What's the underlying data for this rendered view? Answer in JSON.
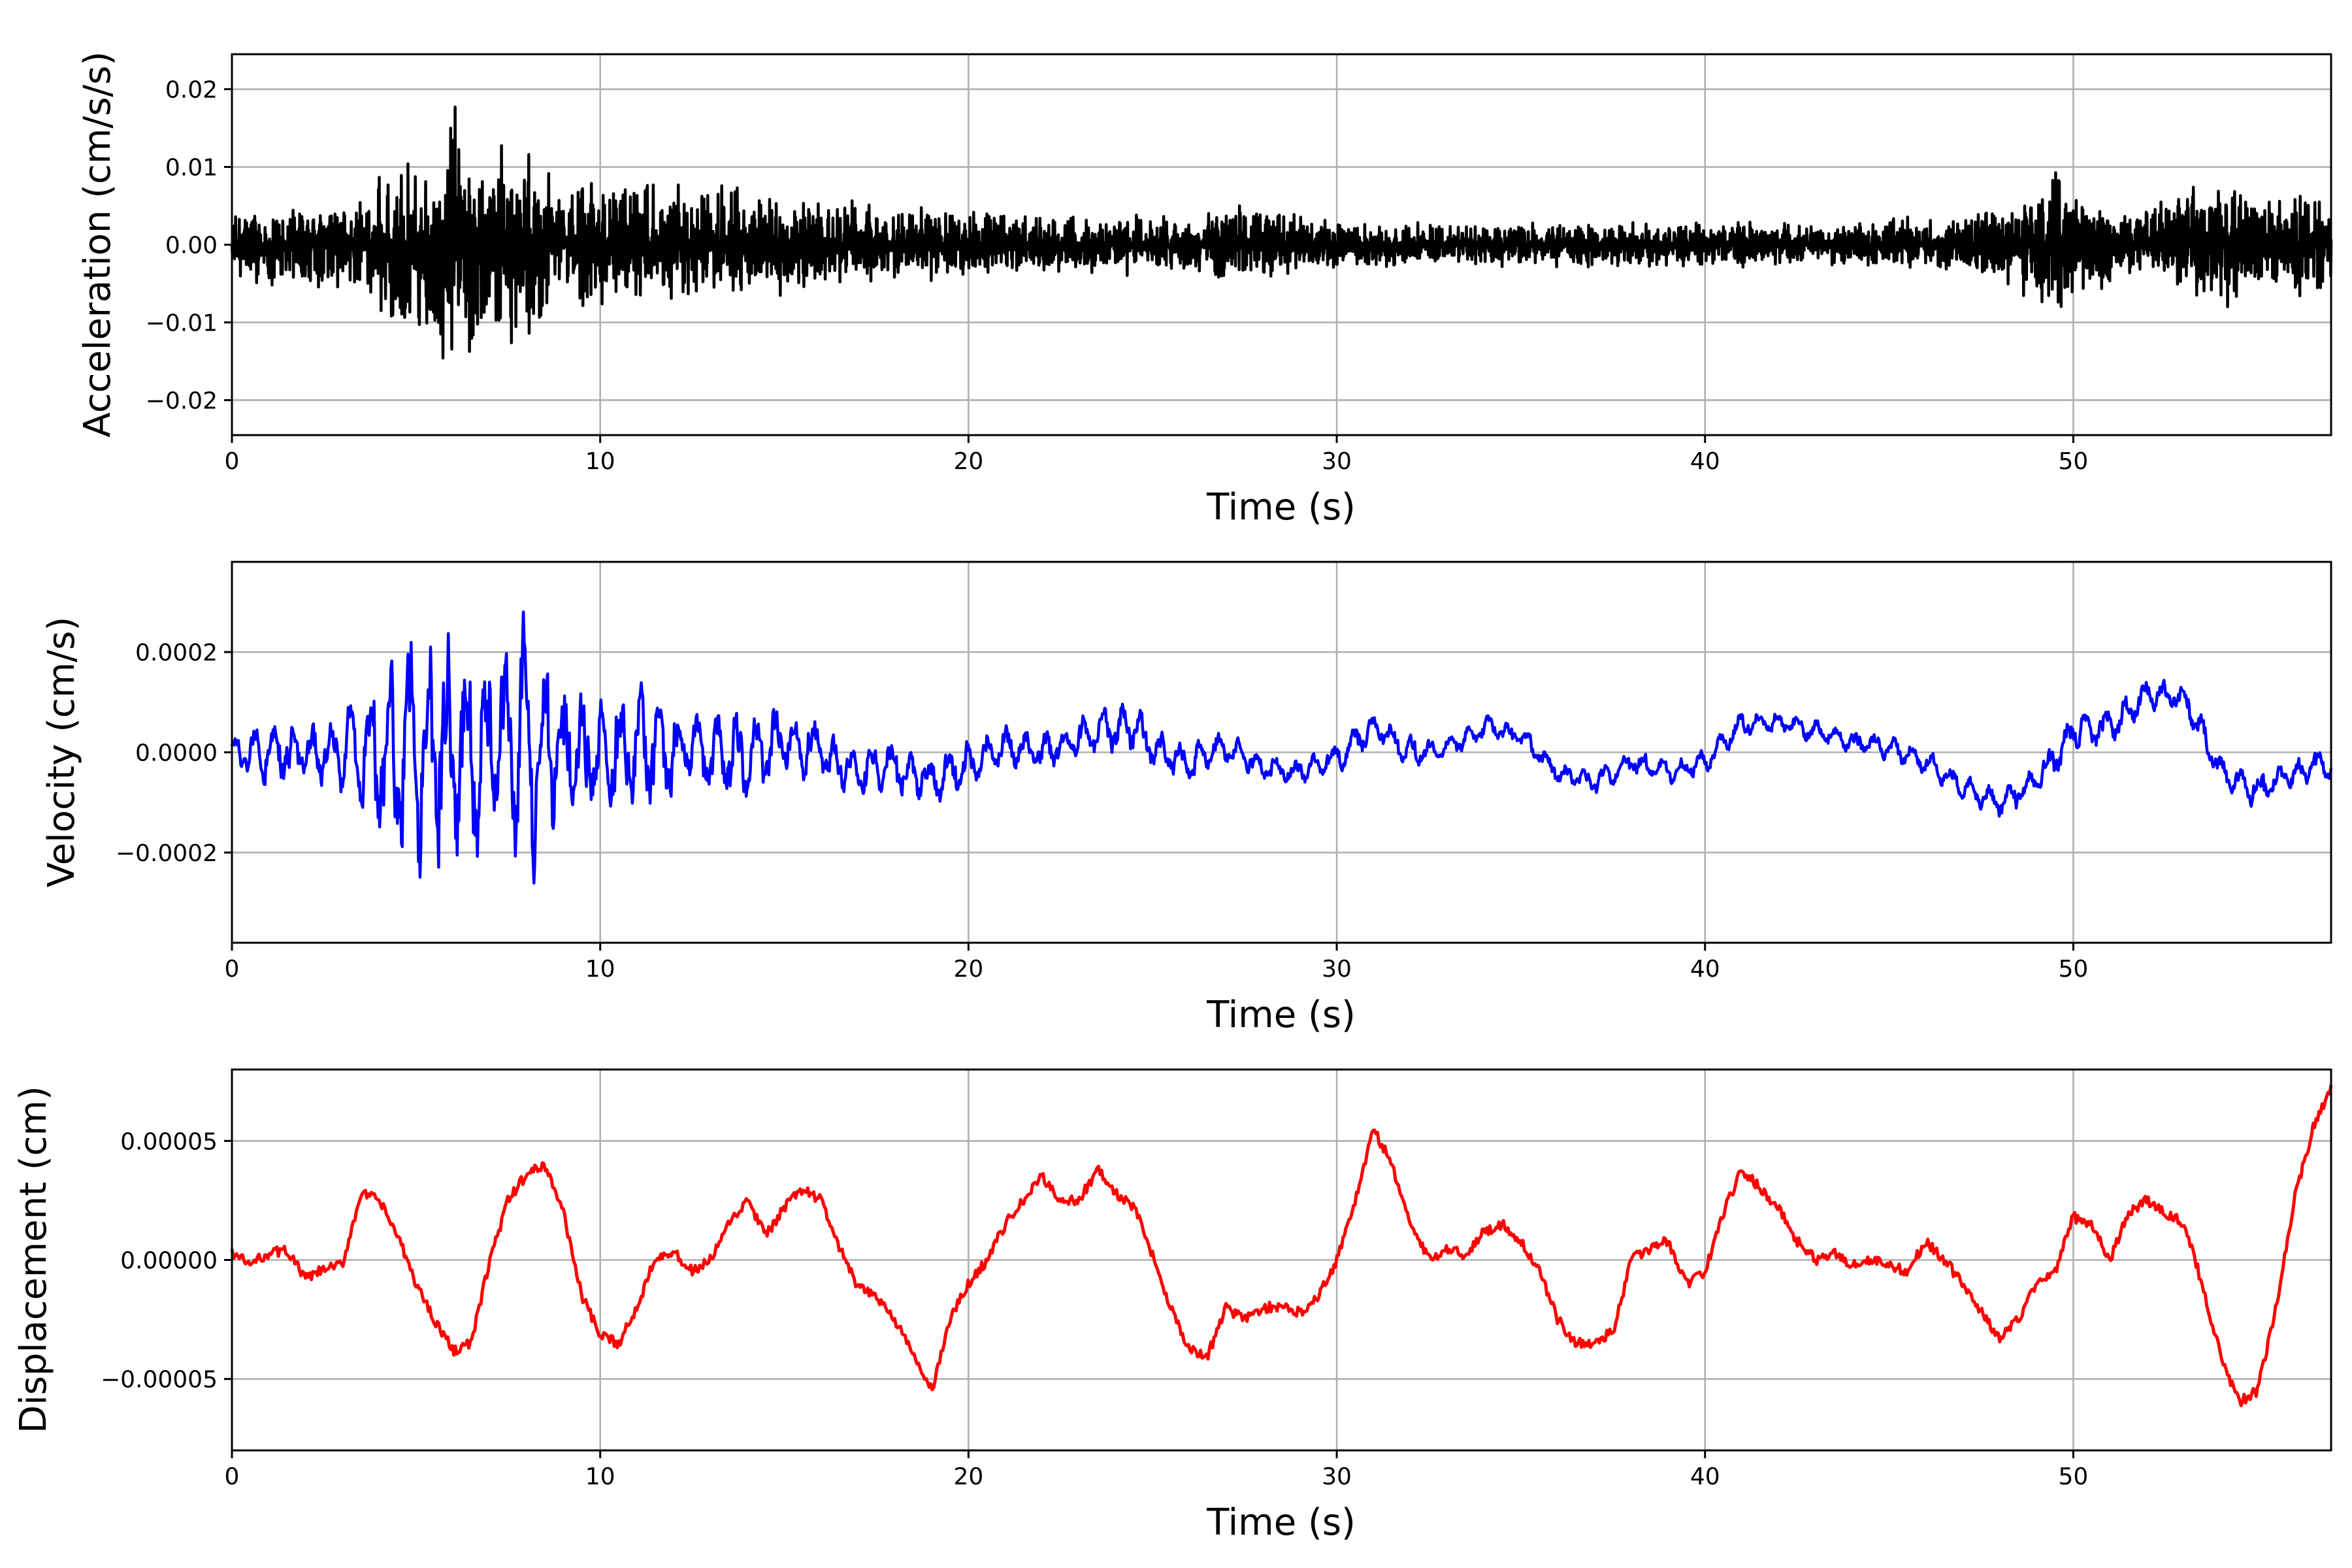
{
  "chart_data": [
    {
      "type": "line",
      "xlabel": "Time (s)",
      "ylabel": "Acceleration (cm/s/s)",
      "xlim": [
        0,
        57
      ],
      "ylim": [
        -0.0245,
        0.0245
      ],
      "grid": true,
      "x_ticks": [
        0,
        10,
        20,
        30,
        40,
        50
      ],
      "x_tick_labels": [
        "0",
        "10",
        "20",
        "30",
        "40",
        "50"
      ],
      "y_ticks": [
        -0.02,
        -0.01,
        0.0,
        0.01,
        0.02
      ],
      "y_tick_labels": [
        "−0.02",
        "−0.01",
        "0.00",
        "0.01",
        "0.02"
      ],
      "series": [
        {
          "color": "#000000",
          "x": [
            0.0,
            1.0,
            2.0,
            3.0,
            3.5,
            4.0,
            4.5,
            5.0,
            5.5,
            6.0,
            6.5,
            7.0,
            7.5,
            8.0,
            8.5,
            9.0,
            10.0,
            11.0,
            12.0,
            13.0,
            14.0,
            15.0,
            16.0,
            17.0,
            18.0,
            19.0,
            20.0,
            22.0,
            24.0,
            26.0,
            27.5,
            29.0,
            31.0,
            33.0,
            35.0,
            37.0,
            39.0,
            40.0,
            42.0,
            44.0,
            46.0,
            47.0,
            48.0,
            48.5,
            49.0,
            49.5,
            50.0,
            51.0,
            52.0,
            53.0,
            53.5,
            54.0,
            54.5,
            55.0,
            55.5,
            56.0,
            57.0
          ],
          "upper": [
            0.004,
            0.006,
            0.005,
            0.006,
            0.007,
            0.009,
            0.013,
            0.012,
            0.009,
            0.022,
            0.011,
            0.013,
            0.013,
            0.012,
            0.01,
            0.009,
            0.01,
            0.011,
            0.008,
            0.009,
            0.008,
            0.007,
            0.006,
            0.006,
            0.005,
            0.005,
            0.005,
            0.004,
            0.004,
            0.004,
            0.006,
            0.004,
            0.003,
            0.003,
            0.003,
            0.003,
            0.003,
            0.003,
            0.003,
            0.003,
            0.004,
            0.004,
            0.006,
            0.007,
            0.006,
            0.013,
            0.007,
            0.005,
            0.006,
            0.007,
            0.009,
            0.008,
            0.008,
            0.007,
            0.006,
            0.008,
            0.006
          ],
          "lower": [
            -0.005,
            -0.006,
            -0.006,
            -0.006,
            -0.007,
            -0.009,
            -0.011,
            -0.016,
            -0.015,
            -0.015,
            -0.018,
            -0.014,
            -0.016,
            -0.017,
            -0.011,
            -0.01,
            -0.008,
            -0.009,
            -0.008,
            -0.008,
            -0.007,
            -0.007,
            -0.006,
            -0.006,
            -0.005,
            -0.005,
            -0.005,
            -0.004,
            -0.004,
            -0.004,
            -0.005,
            -0.004,
            -0.003,
            -0.003,
            -0.003,
            -0.003,
            -0.003,
            -0.003,
            -0.003,
            -0.003,
            -0.004,
            -0.004,
            -0.005,
            -0.007,
            -0.008,
            -0.01,
            -0.007,
            -0.006,
            -0.005,
            -0.006,
            -0.008,
            -0.011,
            -0.007,
            -0.006,
            -0.006,
            -0.008,
            -0.005
          ]
        }
      ]
    },
    {
      "type": "line",
      "xlabel": "Time (s)",
      "ylabel": "Velocity (cm/s)",
      "xlim": [
        0,
        57
      ],
      "ylim": [
        -0.00038,
        0.00038
      ],
      "grid": true,
      "x_ticks": [
        0,
        10,
        20,
        30,
        40,
        50
      ],
      "x_tick_labels": [
        "0",
        "10",
        "20",
        "30",
        "40",
        "50"
      ],
      "y_ticks": [
        -0.0002,
        0.0,
        0.0002
      ],
      "y_tick_labels": [
        "−0.0002",
        "0.0000",
        "0.0002"
      ],
      "series": [
        {
          "color": "#0000ff",
          "x": [
            0.0,
            1.0,
            2.0,
            3.0,
            3.5,
            4.0,
            4.5,
            5.0,
            5.5,
            6.0,
            6.5,
            7.0,
            7.5,
            8.0,
            8.5,
            9.0,
            10.0,
            11.0,
            12.0,
            13.0,
            14.0,
            15.0,
            16.0,
            17.0,
            18.0,
            19.0,
            20.0,
            21.0,
            22.0,
            23.0,
            24.0,
            24.5,
            25.0,
            26.0,
            27.0,
            28.0,
            29.0,
            30.0,
            31.0,
            32.0,
            33.0,
            34.0,
            35.0,
            36.0,
            37.0,
            38.0,
            39.0,
            40.0,
            41.0,
            42.0,
            43.0,
            44.0,
            45.0,
            46.0,
            47.0,
            48.0,
            49.0,
            50.0,
            51.0,
            52.0,
            53.0,
            54.0,
            55.0,
            56.0,
            57.0
          ],
          "mean": [
            0.0,
            0.0,
            0.0,
            0.0,
            0.0,
            0.0,
            0.0,
            0.0,
            0.0,
            0.0,
            0.0,
            0.0,
            0.0,
            0.0,
            0.0,
            0.0,
            0.0,
            0.0,
            1e-05,
            0.0,
            -1e-05,
            2e-05,
            0.0,
            -4e-05,
            -3e-05,
            -6e-05,
            -2e-05,
            1e-05,
            0.0,
            3e-05,
            5e-05,
            5e-05,
            1e-05,
            -2e-05,
            1e-05,
            -3e-05,
            -4e-05,
            -1e-05,
            5e-05,
            0.0,
            1e-05,
            5e-05,
            3e-05,
            -4e-05,
            -6e-05,
            -2e-05,
            -4e-05,
            -2e-05,
            6e-05,
            6e-05,
            4e-05,
            2e-05,
            1e-05,
            -2e-05,
            -7e-05,
            -0.0001,
            -6e-05,
            4e-05,
            5e-05,
            0.00012,
            0.00011,
            -4e-05,
            -8e-05,
            -4e-05,
            -2e-05
          ],
          "amp": [
            4e-05,
            8e-05,
            7e-05,
            0.0001,
            0.00015,
            0.0002,
            0.00028,
            0.00032,
            0.00031,
            0.00031,
            0.0003,
            0.00025,
            0.00026,
            0.00034,
            0.00024,
            0.00018,
            0.00014,
            0.00016,
            0.00011,
            0.0001,
            0.0001,
            9e-05,
            7e-05,
            6e-05,
            6e-05,
            6e-05,
            6e-05,
            5e-05,
            5e-05,
            5e-05,
            6e-05,
            6e-05,
            5e-05,
            5e-05,
            4e-05,
            3e-05,
            3e-05,
            4e-05,
            4e-05,
            4e-05,
            3e-05,
            3e-05,
            3e-05,
            3e-05,
            3e-05,
            3e-05,
            3e-05,
            3e-05,
            3e-05,
            3e-05,
            3e-05,
            3e-05,
            3e-05,
            3e-05,
            3e-05,
            4e-05,
            4e-05,
            5e-05,
            5e-05,
            4e-05,
            4e-05,
            4e-05,
            4e-05,
            4e-05,
            4e-05
          ]
        }
      ]
    },
    {
      "type": "line",
      "xlabel": "Time (s)",
      "ylabel": "Displacement (cm)",
      "xlim": [
        0,
        57
      ],
      "ylim": [
        -8e-05,
        8e-05
      ],
      "grid": true,
      "x_ticks": [
        0,
        10,
        20,
        30,
        40,
        50
      ],
      "x_tick_labels": [
        "0",
        "10",
        "20",
        "30",
        "40",
        "50"
      ],
      "y_ticks": [
        -5e-05,
        0.0,
        5e-05
      ],
      "y_tick_labels": [
        "−0.00005",
        "0.00000",
        "0.00005"
      ],
      "series": [
        {
          "color": "#ff0000",
          "x": [
            0.0,
            0.5,
            1.0,
            1.5,
            2.0,
            2.5,
            3.0,
            3.5,
            4.0,
            4.5,
            5.0,
            5.5,
            6.0,
            6.5,
            7.0,
            7.5,
            8.0,
            8.5,
            9.0,
            9.5,
            10.0,
            10.5,
            11.0,
            11.5,
            12.0,
            12.5,
            13.0,
            13.5,
            14.0,
            14.5,
            15.0,
            15.5,
            16.0,
            16.5,
            17.0,
            17.5,
            18.0,
            18.5,
            19.0,
            19.5,
            20.0,
            20.5,
            21.0,
            21.5,
            22.0,
            22.5,
            23.0,
            23.5,
            24.0,
            24.5,
            25.0,
            25.5,
            26.0,
            26.5,
            27.0,
            27.5,
            28.0,
            28.5,
            29.0,
            29.5,
            30.0,
            30.5,
            31.0,
            31.5,
            32.0,
            32.5,
            33.0,
            33.5,
            34.0,
            34.5,
            35.0,
            35.5,
            36.0,
            36.5,
            37.0,
            37.5,
            38.0,
            38.5,
            39.0,
            39.5,
            40.0,
            40.5,
            41.0,
            41.5,
            42.0,
            42.5,
            43.0,
            43.5,
            44.0,
            44.5,
            45.0,
            45.5,
            46.0,
            46.5,
            47.0,
            47.5,
            48.0,
            48.5,
            49.0,
            49.5,
            50.0,
            50.5,
            51.0,
            51.5,
            52.0,
            52.5,
            53.0,
            53.5,
            54.0,
            54.5,
            55.0,
            55.5,
            56.0,
            56.5,
            57.0
          ],
          "y": [
            3e-06,
            -2e-06,
            3e-06,
            4e-06,
            -8e-06,
            -4e-06,
            -2e-06,
            2.8e-05,
            2.5e-05,
            1e-05,
            -1e-05,
            -2.5e-05,
            -3.8e-05,
            -3.5e-05,
            0.0,
            2.5e-05,
            3.6e-05,
            4e-05,
            2e-05,
            -1.5e-05,
            -3.2e-05,
            -3.5e-05,
            -2e-05,
            2e-06,
            3e-06,
            -5e-06,
            0.0,
            1.5e-05,
            2.5e-05,
            1e-05,
            2.2e-05,
            3e-05,
            2.5e-05,
            5e-06,
            -1.2e-05,
            -1.5e-05,
            -2.5e-05,
            -4e-05,
            -5.5e-05,
            -2.5e-05,
            -1e-05,
            0.0,
            1.5e-05,
            2.5e-05,
            3.5e-05,
            2.5e-05,
            2.5e-05,
            3.8e-05,
            2.8e-05,
            2.2e-05,
            2e-06,
            -2e-05,
            -3.8e-05,
            -4e-05,
            -2e-05,
            -2.5e-05,
            -2e-05,
            -2e-05,
            -2.2e-05,
            -1.5e-05,
            0.0,
            2.5e-05,
            5.5e-05,
            4e-05,
            1.5e-05,
            0.0,
            5e-06,
            2e-06,
            1.2e-05,
            1.5e-05,
            8e-06,
            -5e-06,
            -2.5e-05,
            -3.5e-05,
            -3.5e-05,
            -3e-05,
            0.0,
            5e-06,
            8e-06,
            -1e-05,
            -5e-06,
            2e-05,
            3.8e-05,
            3e-05,
            2.2e-05,
            8e-06,
            0.0,
            3e-06,
            -2e-06,
            0.0,
            -2e-06,
            -5e-06,
            8e-06,
            0.0,
            -1e-05,
            -2.2e-05,
            -3.3e-05,
            -2.5e-05,
            -1e-05,
            -5e-06,
            1.8e-05,
            1.5e-05,
            0.0,
            2e-05,
            2.5e-05,
            2e-05,
            1.5e-05,
            -1e-05,
            -4e-05,
            -6e-05,
            -5.5e-05,
            -2e-05,
            2.5e-05,
            5.5e-05,
            7.3e-05
          ]
        }
      ]
    }
  ]
}
